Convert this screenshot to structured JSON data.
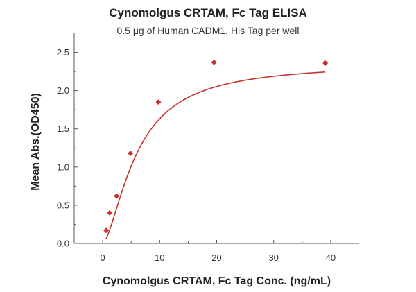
{
  "chart_data": {
    "type": "scatter",
    "title": "Cynomolgus CRTAM, Fc Tag ELISA",
    "subtitle": "0.5 μg of Human CADM1, His Tag per well",
    "xlabel": "Cynomolgus CRTAM, Fc Tag Conc. (ng/mL)",
    "ylabel": "Mean Abs.(OD450)",
    "xlim": [
      -5,
      45
    ],
    "ylim": [
      0,
      2.75
    ],
    "x_ticks": [
      0,
      10,
      20,
      30,
      40
    ],
    "y_ticks": [
      0.0,
      0.5,
      1.0,
      1.5,
      2.0,
      2.5
    ],
    "x_tick_labels": [
      "0",
      "10",
      "20",
      "30",
      "40"
    ],
    "y_tick_labels": [
      "0.0",
      "0.5",
      "1.0",
      "1.5",
      "2.0",
      "2.5"
    ],
    "grid": false,
    "color": "#c8322d",
    "marker": "diamond",
    "series": [
      {
        "x": [
          0.61,
          1.22,
          2.44,
          4.88,
          9.77,
          19.53,
          39.06
        ],
        "y": [
          0.17,
          0.4,
          0.62,
          1.18,
          1.85,
          2.37,
          2.36
        ]
      }
    ],
    "fit_curve": {
      "type": "4PL",
      "bottom": 0.0,
      "top": 2.36,
      "ec50": 6.0,
      "hill": 1.58
    }
  }
}
